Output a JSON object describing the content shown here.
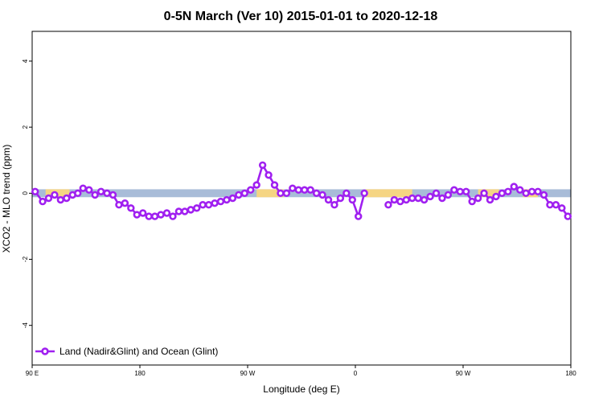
{
  "chart_data": {
    "type": "line",
    "title": "0-5N March (Ver 10)   2015-01-01 to 2020-12-18",
    "xlabel": "Longitude (deg E)",
    "ylabel": "XCO2 - MLO trend (ppm)",
    "xlim": [
      0,
      360
    ],
    "ylim": [
      -5.2,
      4.9
    ],
    "x_ticks": [
      {
        "value": 0,
        "label": "90 E"
      },
      {
        "value": 72,
        "label": "180"
      },
      {
        "value": 144,
        "label": "90 W"
      },
      {
        "value": 216,
        "label": "0"
      },
      {
        "value": 288,
        "label": "90 W"
      },
      {
        "value": 360,
        "label": "180"
      }
    ],
    "y_ticks": [
      -4,
      -2,
      0,
      2,
      4
    ],
    "grid": false,
    "legend": {
      "position": "bottom-left",
      "label": "Land (Nadir&Glint) and Ocean (Glint)"
    },
    "colors": {
      "series": "#a020f0",
      "band_ocean": "#a8bcd8",
      "band_land": "#f5d583"
    },
    "band": {
      "y_range": [
        -0.12,
        0.12
      ],
      "land_segments": [
        [
          9,
          25
        ],
        [
          150,
          168
        ],
        [
          223,
          254
        ],
        [
          298,
          312
        ],
        [
          328,
          338
        ]
      ]
    },
    "series": [
      {
        "name": "Land (Nadir&Glint) and Ocean (Glint)",
        "segments": [
          [
            [
              2,
              0.05
            ],
            [
              7,
              -0.25
            ],
            [
              11,
              -0.15
            ],
            [
              15,
              -0.05
            ],
            [
              19,
              -0.2
            ],
            [
              23,
              -0.15
            ],
            [
              27,
              -0.05
            ],
            [
              30.5,
              0.0
            ],
            [
              34,
              0.15
            ],
            [
              38,
              0.1
            ],
            [
              42,
              -0.05
            ],
            [
              46,
              0.05
            ],
            [
              50,
              0.0
            ],
            [
              54,
              -0.05
            ],
            [
              58,
              -0.35
            ],
            [
              62,
              -0.3
            ],
            [
              66,
              -0.45
            ],
            [
              70,
              -0.65
            ],
            [
              74,
              -0.6
            ],
            [
              78,
              -0.7
            ],
            [
              82,
              -0.7
            ],
            [
              86,
              -0.65
            ],
            [
              90,
              -0.6
            ],
            [
              94,
              -0.7
            ],
            [
              98,
              -0.55
            ],
            [
              102,
              -0.55
            ],
            [
              106,
              -0.5
            ],
            [
              110,
              -0.45
            ],
            [
              114,
              -0.35
            ],
            [
              118,
              -0.35
            ],
            [
              122,
              -0.3
            ],
            [
              126,
              -0.25
            ],
            [
              130,
              -0.2
            ],
            [
              134,
              -0.15
            ],
            [
              138,
              -0.05
            ],
            [
              142,
              0.0
            ],
            [
              146,
              0.1
            ],
            [
              150,
              0.25
            ],
            [
              154,
              0.85
            ],
            [
              158,
              0.55
            ],
            [
              162,
              0.25
            ],
            [
              166,
              0.0
            ],
            [
              170,
              0.0
            ],
            [
              174,
              0.15
            ],
            [
              178,
              0.1
            ],
            [
              182,
              0.1
            ],
            [
              186,
              0.1
            ],
            [
              190,
              0.0
            ],
            [
              194,
              -0.05
            ],
            [
              198,
              -0.2
            ],
            [
              202,
              -0.35
            ],
            [
              206,
              -0.15
            ],
            [
              210,
              0.0
            ],
            [
              214,
              -0.2
            ],
            [
              218,
              -0.7
            ],
            [
              222,
              0.0
            ]
          ],
          [
            [
              238,
              -0.35
            ],
            [
              242,
              -0.2
            ],
            [
              246,
              -0.25
            ],
            [
              250,
              -0.2
            ],
            [
              254,
              -0.15
            ],
            [
              258,
              -0.15
            ],
            [
              262,
              -0.2
            ],
            [
              266,
              -0.1
            ],
            [
              270,
              0.0
            ],
            [
              274,
              -0.15
            ],
            [
              278,
              -0.05
            ],
            [
              282,
              0.1
            ],
            [
              286,
              0.05
            ],
            [
              290,
              0.05
            ],
            [
              294,
              -0.25
            ],
            [
              298,
              -0.15
            ],
            [
              302,
              0.0
            ],
            [
              306,
              -0.2
            ],
            [
              310,
              -0.1
            ],
            [
              314,
              0.0
            ],
            [
              318,
              0.05
            ],
            [
              322,
              0.2
            ],
            [
              326,
              0.1
            ],
            [
              330,
              0.0
            ],
            [
              334,
              0.05
            ],
            [
              338,
              0.05
            ],
            [
              342,
              -0.05
            ],
            [
              346,
              -0.35
            ],
            [
              350,
              -0.35
            ],
            [
              354,
              -0.45
            ],
            [
              358,
              -0.7
            ]
          ]
        ]
      }
    ]
  }
}
